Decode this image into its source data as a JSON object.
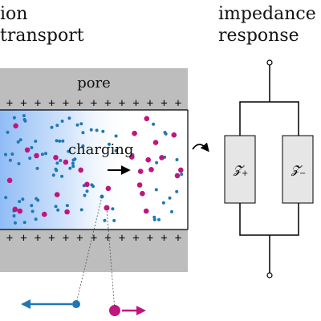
{
  "titles": {
    "left_line1": "ion",
    "left_line2": "transport",
    "right_line1": "impedance",
    "right_line2": "response"
  },
  "pore": {
    "label": "pore",
    "charge_symbol": "+",
    "charging_label": "charging"
  },
  "circuit": {
    "impedance_plus": {
      "symbol": "𝓩",
      "subscript": "+"
    },
    "impedance_minus": {
      "symbol": "𝓩",
      "subscript": "−"
    }
  },
  "colors": {
    "wall": "#bdbdbd",
    "anion": "#c0157e",
    "cation": "#1f78b4",
    "gradient": "#8fbcf5",
    "impedance_box": "#e6e6e6"
  },
  "icons": {
    "cation_arrow": "arrow-left-icon",
    "anion_arrow": "arrow-right-icon",
    "link_arrow": "curved-arrow-icon"
  }
}
